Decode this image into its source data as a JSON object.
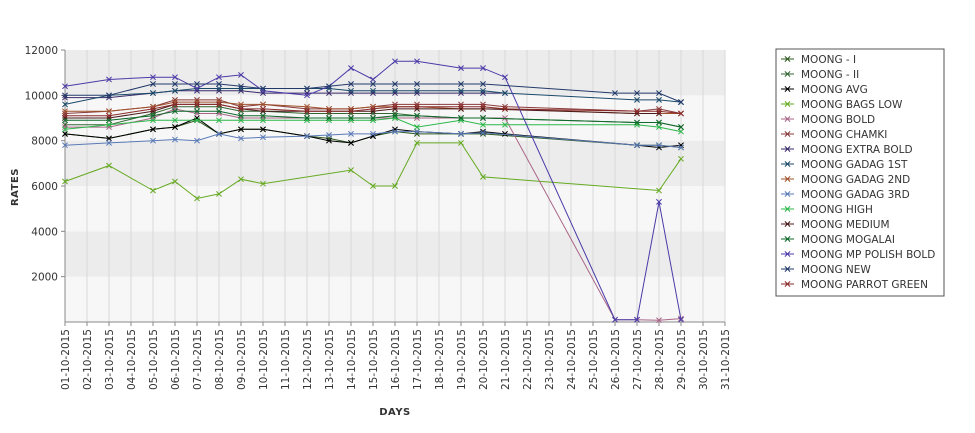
{
  "chart_data": {
    "type": "line",
    "title": "",
    "xlabel": "DAYS",
    "ylabel": "RATES",
    "ylim": [
      0,
      12000
    ],
    "yticks": [
      2000,
      4000,
      6000,
      8000,
      10000,
      12000
    ],
    "x": [
      "01-10-2015",
      "02-10-2015",
      "03-10-2015",
      "04-10-2015",
      "05-10-2015",
      "06-10-2015",
      "07-10-2015",
      "08-10-2015",
      "09-10-2015",
      "10-10-2015",
      "11-10-2015",
      "12-10-2015",
      "13-10-2015",
      "14-10-2015",
      "15-10-2015",
      "16-10-2015",
      "17-10-2015",
      "18-10-2015",
      "19-10-2015",
      "20-10-2015",
      "21-10-2015",
      "22-10-2015",
      "23-10-2015",
      "24-10-2015",
      "25-10-2015",
      "26-10-2015",
      "27-10-2015",
      "28-10-2015",
      "29-10-2015",
      "30-10-2015",
      "31-10-2015"
    ],
    "grid": "vertical lines, alternating horizontal bands",
    "legend_position": "right",
    "series": [
      {
        "name": "MOONG - I",
        "color": "#2e5a1e",
        "values": [
          8300,
          null,
          8100,
          null,
          8500,
          8600,
          8900,
          8300,
          8500,
          8500,
          null,
          8200,
          8100,
          7900,
          8200,
          8400,
          8300,
          null,
          8300,
          8300,
          null,
          null,
          null,
          null,
          null,
          null,
          7800,
          7800,
          7700,
          null,
          null
        ]
      },
      {
        "name": "MOONG - II",
        "color": "#336633",
        "values": [
          8700,
          null,
          8700,
          null,
          9200,
          9500,
          9500,
          9500,
          9300,
          9300,
          null,
          9200,
          9200,
          9200,
          9200,
          9200,
          9100,
          null,
          9000,
          9000,
          null,
          null,
          null,
          null,
          null,
          null,
          8800,
          8800,
          8600,
          null,
          null
        ]
      },
      {
        "name": "MOONG AVG",
        "color": "#000000",
        "values": [
          8300,
          null,
          8100,
          null,
          8500,
          8600,
          9000,
          8300,
          8500,
          8500,
          null,
          8200,
          8000,
          7900,
          8200,
          8500,
          8400,
          null,
          8300,
          8400,
          8300,
          null,
          null,
          null,
          null,
          null,
          7800,
          7700,
          7800,
          null,
          null
        ]
      },
      {
        "name": "MOONG BAGS LOW",
        "color": "#66aa22",
        "values": [
          6200,
          null,
          6900,
          null,
          5800,
          6200,
          5450,
          5650,
          6300,
          6100,
          null,
          null,
          null,
          6700,
          6000,
          6000,
          7900,
          null,
          7900,
          6400,
          null,
          null,
          null,
          null,
          null,
          null,
          null,
          5800,
          7200,
          null,
          null
        ]
      },
      {
        "name": "MOONG BOLD",
        "color": "#aa6688",
        "values": [
          8600,
          null,
          8600,
          null,
          9000,
          9400,
          9200,
          9200,
          9000,
          9000,
          null,
          9000,
          9000,
          9000,
          9000,
          9000,
          9000,
          null,
          9000,
          9000,
          9000,
          null,
          null,
          null,
          null,
          100,
          100,
          80,
          150,
          null,
          null
        ]
      },
      {
        "name": "MOONG CHAMKI",
        "color": "#8b3a3a",
        "values": [
          9200,
          null,
          9300,
          null,
          9500,
          9800,
          9800,
          9800,
          9500,
          9600,
          null,
          9400,
          9400,
          9400,
          9500,
          9600,
          9600,
          null,
          9600,
          9600,
          9500,
          null,
          null,
          null,
          null,
          null,
          9300,
          9400,
          9200,
          null,
          null
        ]
      },
      {
        "name": "MOONG EXTRA BOLD",
        "color": "#3a2a6a",
        "values": [
          9900,
          null,
          9900,
          null,
          10100,
          10200,
          10200,
          10200,
          10200,
          10100,
          null,
          10100,
          10100,
          10100,
          10100,
          10100,
          10100,
          null,
          10100,
          10100,
          10100,
          null,
          null,
          null,
          null,
          null,
          null,
          null,
          null,
          null,
          null
        ]
      },
      {
        "name": "MOONG GADAG 1ST",
        "color": "#1a4a6a",
        "values": [
          9600,
          null,
          10000,
          null,
          10100,
          10200,
          10300,
          10300,
          10300,
          10300,
          null,
          10300,
          10300,
          10200,
          10200,
          10200,
          10200,
          null,
          10200,
          10200,
          10100,
          null,
          null,
          null,
          null,
          null,
          9800,
          9800,
          9700,
          null,
          null
        ]
      },
      {
        "name": "MOONG GADAG 2ND",
        "color": "#a0522d",
        "values": [
          9300,
          null,
          9300,
          null,
          9500,
          9700,
          9700,
          9700,
          9600,
          9600,
          null,
          9500,
          9400,
          9400,
          9500,
          9500,
          9500,
          null,
          9400,
          9400,
          9400,
          null,
          null,
          null,
          null,
          null,
          9200,
          9200,
          9200,
          null,
          null
        ]
      },
      {
        "name": "MOONG GADAG 3RD",
        "color": "#5a7ab8",
        "values": [
          7800,
          null,
          7900,
          null,
          8000,
          8050,
          8000,
          8300,
          8100,
          8150,
          null,
          8200,
          8250,
          8300,
          8300,
          8400,
          8400,
          null,
          8300,
          8350,
          null,
          null,
          null,
          null,
          null,
          null,
          7800,
          7800,
          7700,
          null,
          null
        ]
      },
      {
        "name": "MOONG HIGH",
        "color": "#2db84a",
        "values": [
          8500,
          null,
          8700,
          null,
          8900,
          8900,
          8900,
          8900,
          8900,
          8900,
          null,
          8900,
          8900,
          8900,
          8900,
          9000,
          8600,
          null,
          8900,
          8700,
          8700,
          null,
          null,
          null,
          null,
          null,
          8700,
          8600,
          8400,
          null,
          null
        ]
      },
      {
        "name": "MOONG MEDIUM",
        "color": "#4a1a1a",
        "values": [
          9000,
          null,
          9000,
          null,
          9300,
          9600,
          9600,
          9600,
          9400,
          9300,
          null,
          9300,
          9300,
          9300,
          9300,
          9400,
          9400,
          null,
          9400,
          9400,
          null,
          null,
          null,
          null,
          null,
          null,
          9200,
          9200,
          null,
          null,
          null
        ]
      },
      {
        "name": "MOONG MOGALAI",
        "color": "#0e6a2a",
        "values": [
          8900,
          null,
          8900,
          null,
          9100,
          9300,
          9300,
          9300,
          9100,
          9100,
          null,
          9000,
          9000,
          9000,
          9000,
          9100,
          9100,
          null,
          9000,
          9000,
          null,
          null,
          null,
          null,
          null,
          null,
          8800,
          8800,
          8600,
          null,
          null
        ]
      },
      {
        "name": "MOONG MP POLISH BOLD",
        "color": "#4a3aa8",
        "values": [
          10400,
          null,
          10700,
          null,
          10800,
          10800,
          10300,
          10800,
          10900,
          10200,
          null,
          10000,
          10400,
          11200,
          10700,
          11500,
          11500,
          null,
          11200,
          11200,
          10800,
          null,
          null,
          null,
          null,
          100,
          100,
          5300,
          100,
          null,
          null
        ]
      },
      {
        "name": "MOONG NEW",
        "color": "#223a6a",
        "values": [
          10000,
          null,
          10000,
          null,
          10500,
          10500,
          10500,
          10500,
          10400,
          10300,
          null,
          10300,
          10400,
          10500,
          10500,
          10500,
          10500,
          null,
          10500,
          10500,
          null,
          null,
          null,
          null,
          null,
          10100,
          10100,
          10100,
          9700,
          null,
          null
        ]
      },
      {
        "name": "MOONG PARROT GREEN",
        "color": "#8b2a2a",
        "values": [
          9100,
          null,
          9100,
          null,
          9400,
          9600,
          9600,
          9600,
          9400,
          9400,
          null,
          9300,
          9300,
          9300,
          9400,
          9500,
          9500,
          null,
          9500,
          9500,
          9400,
          null,
          null,
          null,
          null,
          null,
          9300,
          9300,
          9200,
          null,
          null
        ]
      }
    ]
  }
}
